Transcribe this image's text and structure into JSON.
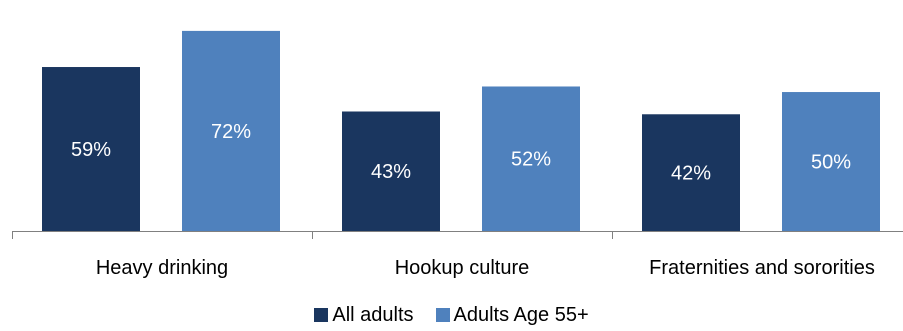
{
  "chart_data": {
    "type": "bar",
    "categories": [
      "Heavy drinking",
      "Hookup culture",
      "Fraternities and sororities"
    ],
    "series": [
      {
        "name": "All adults",
        "values": [
          59,
          43,
          42
        ],
        "labels": [
          "59%",
          "43%",
          "42%"
        ],
        "color": "#1a365f"
      },
      {
        "name": "Adults Age 55+",
        "values": [
          72,
          52,
          50
        ],
        "labels": [
          "72%",
          "52%",
          "50%"
        ],
        "color": "#4f81bd"
      }
    ],
    "ylim": [
      0,
      77
    ],
    "grid": false,
    "legend": "bottom",
    "label_color": "#ffffff",
    "axis_color": "#808080"
  }
}
